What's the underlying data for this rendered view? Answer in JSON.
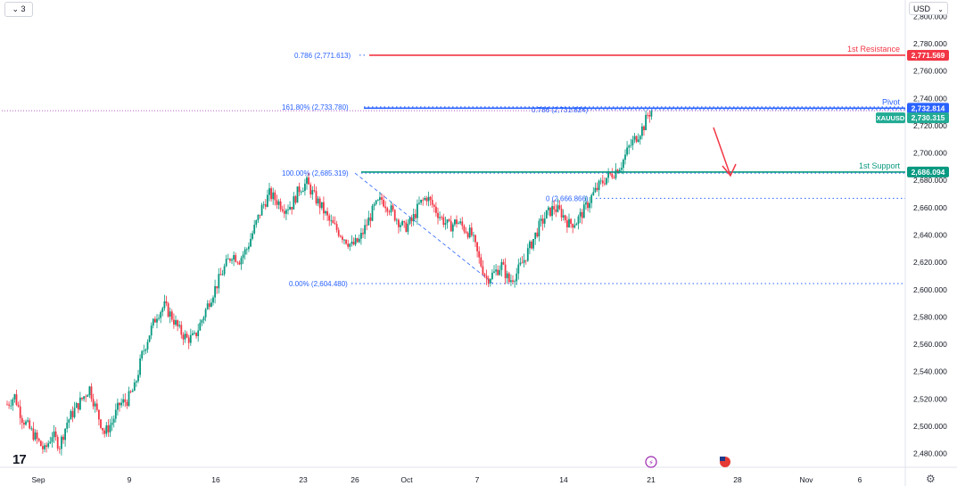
{
  "toolbar": {
    "interval_label": "⌄ 3",
    "currency_label": "USD"
  },
  "chart_data": {
    "type": "candlestick",
    "symbol": "XAUUSD",
    "ylim": [
      2470,
      2812
    ],
    "y_ticks": [
      2480,
      2500,
      2520,
      2540,
      2560,
      2580,
      2600,
      2620,
      2640,
      2660,
      2680,
      2700,
      2720,
      2740,
      2760,
      2780,
      2800
    ],
    "y_tick_labels": [
      "2,480.000",
      "2,500.000",
      "2,520.000",
      "2,540.000",
      "2,560.000",
      "2,580.000",
      "2,600.000",
      "2,620.000",
      "2,640.000",
      "2,660.000",
      "2,680.000",
      "2,700.000",
      "2,720.000",
      "2,740.000",
      "2,760.000",
      "2,780.000",
      "2,800.000"
    ],
    "x_labels": [
      "Sep",
      "9",
      "16",
      "23",
      "26",
      "Oct",
      "7",
      "14",
      "21",
      "28",
      "Nov",
      "6"
    ],
    "price_path": [
      [
        0,
        2516
      ],
      [
        4,
        2522
      ],
      [
        8,
        2506
      ],
      [
        12,
        2498
      ],
      [
        16,
        2490
      ],
      [
        20,
        2482
      ],
      [
        24,
        2494
      ],
      [
        28,
        2486
      ],
      [
        32,
        2503
      ],
      [
        36,
        2512
      ],
      [
        40,
        2520
      ],
      [
        44,
        2528
      ],
      [
        48,
        2510
      ],
      [
        52,
        2495
      ],
      [
        56,
        2503
      ],
      [
        60,
        2516
      ],
      [
        64,
        2519
      ],
      [
        68,
        2528
      ],
      [
        72,
        2552
      ],
      [
        76,
        2568
      ],
      [
        80,
        2582
      ],
      [
        84,
        2588
      ],
      [
        88,
        2580
      ],
      [
        92,
        2570
      ],
      [
        96,
        2564
      ],
      [
        100,
        2565
      ],
      [
        104,
        2578
      ],
      [
        108,
        2592
      ],
      [
        112,
        2604
      ],
      [
        116,
        2616
      ],
      [
        120,
        2626
      ],
      [
        124,
        2622
      ],
      [
        128,
        2630
      ],
      [
        132,
        2645
      ],
      [
        136,
        2660
      ],
      [
        140,
        2670
      ],
      [
        144,
        2665
      ],
      [
        148,
        2660
      ],
      [
        152,
        2662
      ],
      [
        156,
        2674
      ],
      [
        160,
        2678
      ],
      [
        164,
        2668
      ],
      [
        168,
        2660
      ],
      [
        172,
        2650
      ],
      [
        176,
        2644
      ],
      [
        180,
        2638
      ],
      [
        184,
        2632
      ],
      [
        188,
        2636
      ],
      [
        192,
        2648
      ],
      [
        196,
        2660
      ],
      [
        200,
        2666
      ],
      [
        204,
        2660
      ],
      [
        208,
        2652
      ],
      [
        212,
        2645
      ],
      [
        216,
        2650
      ],
      [
        220,
        2662
      ],
      [
        224,
        2668
      ],
      [
        228,
        2660
      ],
      [
        232,
        2652
      ],
      [
        236,
        2646
      ],
      [
        240,
        2650
      ],
      [
        244,
        2645
      ],
      [
        248,
        2640
      ],
      [
        252,
        2622
      ],
      [
        256,
        2608
      ],
      [
        260,
        2612
      ],
      [
        264,
        2618
      ],
      [
        268,
        2606
      ],
      [
        272,
        2612
      ],
      [
        276,
        2622
      ],
      [
        280,
        2634
      ],
      [
        284,
        2646
      ],
      [
        288,
        2655
      ],
      [
        292,
        2660
      ],
      [
        296,
        2656
      ],
      [
        300,
        2648
      ],
      [
        304,
        2650
      ],
      [
        308,
        2658
      ],
      [
        312,
        2668
      ],
      [
        316,
        2676
      ],
      [
        320,
        2682
      ],
      [
        324,
        2686
      ],
      [
        328,
        2692
      ],
      [
        332,
        2704
      ],
      [
        336,
        2712
      ],
      [
        340,
        2720
      ],
      [
        342,
        2728
      ],
      [
        344,
        2731
      ]
    ],
    "levels": [
      {
        "name": "1st Resistance",
        "value": 2771.569,
        "value_label": "2,771.569",
        "color": "#f23645"
      },
      {
        "name": "Pivot",
        "value": 2732.814,
        "value_label": "2,732.814",
        "color": "#2962ff"
      },
      {
        "name": "1st Support",
        "value": 2686.094,
        "value_label": "2,686.094",
        "color": "#089981"
      }
    ],
    "last_price": {
      "symbol": "XAUUSD",
      "value": 2730.315,
      "value_label": "2,730.315",
      "color": "#22ab94"
    },
    "fib_labels": [
      {
        "text": "0.786 (2,771.613)",
        "value": 2771.613
      },
      {
        "text": "161.80% (2,733.780)",
        "value": 2733.78
      },
      {
        "text": "0.786 (2,731.824)",
        "value": 2731.824
      },
      {
        "text": "100.00% (2,685.319)",
        "value": 2685.319
      },
      {
        "text": "0 (2,666.866)",
        "value": 2666.866
      },
      {
        "text": "0.00% (2,604.480)",
        "value": 2604.48
      }
    ],
    "colors": {
      "up": "#089981",
      "down": "#f23645",
      "grid": "#f0f3fa",
      "fib": "#2962ff"
    }
  }
}
